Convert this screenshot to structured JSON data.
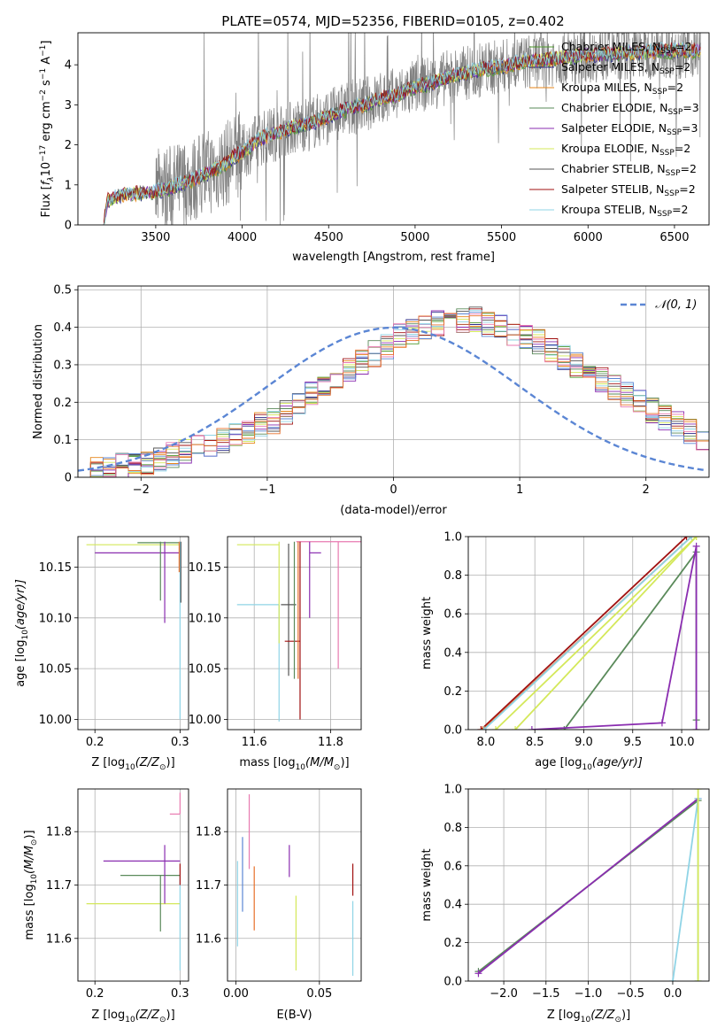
{
  "figure": {
    "title": "PLATE=0574, MJD=52356, FIBERID=0105, z=0.402",
    "colors": {
      "chabrier_miles": "#4f9a2e",
      "salpeter_miles": "#2d2d8a",
      "kroupa_miles": "#e6861a",
      "chabrier_elodie": "#5a8a5a",
      "salpeter_elodie": "#8a2db0",
      "kroupa_elodie": "#d4e85a",
      "chabrier_stelib": "#555555",
      "salpeter_stelib": "#a01010",
      "kroupa_stelib": "#8fd4e6",
      "normal": "#5b86d4",
      "pink": "#e87ab0",
      "orange": "#e8702a",
      "data": "#808080"
    }
  },
  "chart_data": [
    {
      "id": "spectrum",
      "type": "line",
      "xlabel": "wavelength [Angstrom, rest frame]",
      "ylabel_parts": [
        "Flux [",
        "f",
        "λ",
        "10",
        "−17",
        " erg cm",
        "−2",
        " s",
        "−1",
        " A",
        "−1",
        "]"
      ],
      "xlim": [
        3050,
        6700
      ],
      "ylim": [
        0,
        4.8
      ],
      "xticks": [
        3500,
        4000,
        4500,
        5000,
        5500,
        6000,
        6500
      ],
      "yticks": [
        0,
        1,
        2,
        3,
        4
      ],
      "grid": false,
      "legend_placement": "right",
      "legend": [
        {
          "name": "Chabrier MILES, N",
          "sub": "SSP",
          "tail": "=2",
          "color_key": "chabrier_miles"
        },
        {
          "name": "Salpeter MILES, N",
          "sub": "SSP",
          "tail": "=2",
          "color_key": "salpeter_miles"
        },
        {
          "name": "Kroupa MILES, N",
          "sub": "SSP",
          "tail": "=2",
          "color_key": "kroupa_miles"
        },
        {
          "name": "Chabrier ELODIE, N",
          "sub": "SSP",
          "tail": "=3",
          "color_key": "chabrier_elodie"
        },
        {
          "name": "Salpeter ELODIE, N",
          "sub": "SSP",
          "tail": "=3",
          "color_key": "salpeter_elodie"
        },
        {
          "name": "Kroupa ELODIE, N",
          "sub": "SSP",
          "tail": "=2",
          "color_key": "kroupa_elodie"
        },
        {
          "name": "Chabrier STELIB, N",
          "sub": "SSP",
          "tail": "=2",
          "color_key": "chabrier_stelib"
        },
        {
          "name": "Salpeter STELIB, N",
          "sub": "SSP",
          "tail": "=2",
          "color_key": "salpeter_stelib"
        },
        {
          "name": "Kroupa STELIB, N",
          "sub": "SSP",
          "tail": "=2",
          "color_key": "kroupa_stelib"
        }
      ],
      "model_x": [
        3200,
        3220,
        3300,
        3400,
        3500,
        3600,
        3700,
        3800,
        3900,
        3950,
        4000,
        4100,
        4200,
        4300,
        4400,
        4500,
        4600,
        4700,
        4800,
        4900,
        5000,
        5100,
        5200,
        5300,
        5400,
        5500,
        5600,
        5700,
        5800,
        5900,
        6000,
        6100,
        6200,
        6300,
        6400,
        6500,
        6600
      ],
      "model_y": [
        0.0,
        0.6,
        0.75,
        0.78,
        0.82,
        0.95,
        1.1,
        1.3,
        1.5,
        1.7,
        1.8,
        2.15,
        2.3,
        2.45,
        2.55,
        2.7,
        2.9,
        3.0,
        3.15,
        3.25,
        3.45,
        3.55,
        3.7,
        3.8,
        3.9,
        3.95,
        4.05,
        4.1,
        4.15,
        4.2,
        4.25,
        4.25,
        4.3,
        4.3,
        4.35,
        4.35,
        4.35
      ],
      "data_noise_start": 3500
    },
    {
      "id": "residuals",
      "type": "bar",
      "xlabel": "(data-model)/error",
      "ylabel": "Normed distribution",
      "xlim": [
        -2.5,
        2.5
      ],
      "ylim": [
        0,
        0.51
      ],
      "xticks": [
        -2,
        -1,
        0,
        1,
        2
      ],
      "xtick_labels": [
        "−2",
        "−1",
        "0",
        "1",
        "2"
      ],
      "yticks": [
        0.0,
        0.1,
        0.2,
        0.3,
        0.4,
        0.5
      ],
      "grid": true,
      "legend_placement": "top-right",
      "normal_label": "𝒩(0, 1)",
      "bin_width": 0.1,
      "bin_start": -2.5,
      "hist_base": [
        0.02,
        0.02,
        0.02,
        0.03,
        0.03,
        0.04,
        0.05,
        0.06,
        0.07,
        0.08,
        0.09,
        0.1,
        0.11,
        0.12,
        0.14,
        0.15,
        0.17,
        0.2,
        0.22,
        0.25,
        0.27,
        0.29,
        0.31,
        0.33,
        0.35,
        0.38,
        0.39,
        0.4,
        0.41,
        0.41,
        0.42,
        0.42,
        0.41,
        0.4,
        0.38,
        0.37,
        0.36,
        0.34,
        0.32,
        0.3,
        0.28,
        0.26,
        0.24,
        0.22,
        0.2,
        0.18,
        0.16,
        0.14,
        0.12,
        0.1
      ]
    },
    {
      "id": "age_vs_Z",
      "type": "scatter",
      "xlabel_parts": [
        "Z [log",
        "10",
        "(Z/Z",
        "⊙",
        ")]"
      ],
      "ylabel_parts": [
        "age  [log",
        "10",
        "(age/yr)]"
      ],
      "xlim": [
        0.18,
        0.31
      ],
      "ylim": [
        9.99,
        10.18
      ],
      "xticks": [
        0.2,
        0.3
      ],
      "xtick_labels": [
        "0.2",
        "0.3"
      ],
      "yticks": [
        10.0,
        10.05,
        10.1,
        10.15
      ],
      "ytick_labels": [
        "10.00",
        "10.05",
        "10.10",
        "10.15"
      ],
      "grid": true,
      "points": [
        {
          "x": 0.3,
          "y": 10.172,
          "xerr": [
            0.11,
            0.0
          ],
          "yerr": [
            0.0,
            0.0
          ],
          "color_key": "kroupa_elodie"
        },
        {
          "x": 0.3,
          "y": 10.174,
          "xerr": [
            0.05,
            0.0
          ],
          "yerr": [
            0.0,
            0.0
          ],
          "color_key": "chabrier_elodie"
        },
        {
          "x": 0.3,
          "y": 10.164,
          "xerr": [
            0.1,
            0.0
          ],
          "yerr": [
            0.0,
            0.0
          ],
          "color_key": "salpeter_elodie"
        },
        {
          "x": 0.282,
          "y": 10.175,
          "xerr": [
            0.0,
            0.0
          ],
          "yerr": [
            0.08,
            0.0
          ],
          "color_key": "salpeter_elodie"
        },
        {
          "x": 0.277,
          "y": 10.175,
          "xerr": [
            0.0,
            0.0
          ],
          "yerr": [
            0.058,
            0.0
          ],
          "color_key": "chabrier_elodie"
        },
        {
          "x": 0.3,
          "y": 10.175,
          "xerr": [
            0.0,
            0.0
          ],
          "yerr": [
            0.175,
            0.0
          ],
          "color_key": "kroupa_stelib"
        },
        {
          "x": 0.301,
          "y": 10.175,
          "xerr": [
            0.0,
            0.0
          ],
          "yerr": [
            0.06,
            0.0
          ],
          "color_key": "chabrier_stelib"
        },
        {
          "x": 0.299,
          "y": 10.175,
          "xerr": [
            0.0,
            0.0
          ],
          "yerr": [
            0.03,
            0.0
          ],
          "color_key": "orange"
        }
      ]
    },
    {
      "id": "age_vs_mass",
      "type": "scatter",
      "xlabel_parts": [
        "mass [log",
        "10",
        "(M/M",
        "⊙",
        ")]"
      ],
      "xlim": [
        11.53,
        11.88
      ],
      "ylim": [
        9.99,
        10.18
      ],
      "xticks": [
        11.6,
        11.8
      ],
      "xtick_labels": [
        "11.6",
        "11.8"
      ],
      "yticks": [
        10.0,
        10.05,
        10.1,
        10.15
      ],
      "ytick_labels": [
        "10.00",
        "10.05",
        "10.10",
        "10.15"
      ],
      "grid": true,
      "points": [
        {
          "x": 11.665,
          "y": 10.172,
          "xerr": [
            0.11,
            0.0
          ],
          "yerr": [
            0.0,
            0.0
          ],
          "color_key": "kroupa_elodie"
        },
        {
          "x": 11.745,
          "y": 10.164,
          "xerr": [
            0.0,
            0.03
          ],
          "yerr": [
            0.0,
            0.0
          ],
          "color_key": "salpeter_elodie"
        },
        {
          "x": 11.82,
          "y": 10.175,
          "xerr": [
            0.11,
            0.07
          ],
          "yerr": [
            0.125,
            0.0
          ],
          "color_key": "pink"
        },
        {
          "x": 11.665,
          "y": 10.113,
          "xerr": [
            0.11,
            0.0
          ],
          "yerr": [
            0.115,
            0.0
          ],
          "color_key": "kroupa_stelib"
        },
        {
          "x": 11.69,
          "y": 10.113,
          "xerr": [
            0.02,
            0.02
          ],
          "yerr": [
            0.07,
            0.06
          ],
          "color_key": "chabrier_stelib"
        },
        {
          "x": 11.72,
          "y": 10.077,
          "xerr": [
            0.04,
            0.0
          ],
          "yerr": [
            0.077,
            0.098
          ],
          "color_key": "salpeter_stelib"
        },
        {
          "x": 11.745,
          "y": 10.175,
          "xerr": [
            0.0,
            0.0
          ],
          "yerr": [
            0.075,
            0.0
          ],
          "color_key": "salpeter_elodie"
        },
        {
          "x": 11.715,
          "y": 10.175,
          "xerr": [
            0.0,
            0.0
          ],
          "yerr": [
            0.135,
            0.0
          ],
          "color_key": "orange"
        },
        {
          "x": 11.705,
          "y": 10.175,
          "xerr": [
            0.0,
            0.0
          ],
          "yerr": [
            0.135,
            0.0
          ],
          "color_key": "chabrier_elodie"
        },
        {
          "x": 11.665,
          "y": 10.175,
          "xerr": [
            0.0,
            0.0
          ],
          "yerr": [
            0.1,
            0.0
          ],
          "color_key": "kroupa_elodie"
        }
      ]
    },
    {
      "id": "massweight_vs_age",
      "type": "line",
      "xlabel_parts": [
        "age  [log",
        "10",
        "(age/yr)]"
      ],
      "ylabel": "mass weight",
      "xlim": [
        7.82,
        10.28
      ],
      "ylim": [
        0,
        1.0
      ],
      "xticks": [
        8.0,
        8.5,
        9.0,
        9.5,
        10.0
      ],
      "xtick_labels": [
        "8.0",
        "8.5",
        "9.0",
        "9.5",
        "10.0"
      ],
      "yticks": [
        0.0,
        0.2,
        0.4,
        0.6,
        0.8,
        1.0
      ],
      "ytick_labels": [
        "0.0",
        "0.2",
        "0.4",
        "0.6",
        "0.8",
        "1.0"
      ],
      "grid": true,
      "lines": [
        {
          "x": [
            7.95,
            10.05
          ],
          "y": [
            0.0,
            1.0
          ],
          "color_key": "salpeter_stelib"
        },
        {
          "x": 7.95,
          "y": 0.0,
          "color_key": "salpeter_stelib",
          "skip": true
        },
        {
          "x": [
            7.97,
            10.1
          ],
          "y": [
            0.0,
            1.0
          ],
          "color_key": "orange"
        },
        {
          "x": [
            7.98,
            10.1
          ],
          "y": [
            0.0,
            1.0
          ],
          "color_key": "kroupa_stelib"
        },
        {
          "x": [
            8.1,
            10.15
          ],
          "y": [
            0.0,
            1.0
          ],
          "color_key": "kroupa_elodie"
        },
        {
          "x": [
            8.3,
            10.15
          ],
          "y": [
            0.0,
            1.0
          ],
          "color_key": "kroupa_elodie"
        },
        {
          "x": [
            8.8,
            10.15,
            10.15
          ],
          "y": [
            0.0,
            0.92,
            0.05
          ],
          "color_key": "chabrier_elodie"
        },
        {
          "x": [
            8.47,
            9.8,
            10.15,
            10.15
          ],
          "y": [
            0.0,
            0.035,
            0.95,
            0.0
          ],
          "color_key": "salpeter_elodie"
        }
      ]
    },
    {
      "id": "mass_vs_Z",
      "type": "scatter",
      "xlabel_parts": [
        "Z [log",
        "10",
        "(Z/Z",
        "⊙",
        ")]"
      ],
      "ylabel_parts": [
        "mass [log",
        "10",
        "(M/M",
        "⊙",
        ")]"
      ],
      "xlim": [
        0.18,
        0.31
      ],
      "ylim": [
        11.52,
        11.88
      ],
      "xticks": [
        0.2,
        0.3
      ],
      "xtick_labels": [
        "0.2",
        "0.3"
      ],
      "yticks": [
        11.6,
        11.7,
        11.8
      ],
      "ytick_labels": [
        "11.6",
        "11.7",
        "11.8"
      ],
      "grid": true,
      "points": [
        {
          "x": 0.3,
          "y": 11.665,
          "xerr": [
            0.11,
            0.0
          ],
          "yerr": [
            0.0,
            0.0
          ],
          "color_key": "kroupa_elodie"
        },
        {
          "x": 0.3,
          "y": 11.745,
          "xerr": [
            0.09,
            0.0
          ],
          "yerr": [
            0.0,
            0.0
          ],
          "color_key": "salpeter_elodie"
        },
        {
          "x": 0.3,
          "y": 11.718,
          "xerr": [
            0.07,
            0.0
          ],
          "yerr": [
            0.0,
            0.0
          ],
          "color_key": "chabrier_elodie"
        },
        {
          "x": 0.3,
          "y": 11.833,
          "xerr": [
            0.012,
            0.0
          ],
          "yerr": [
            0.0,
            0.04
          ],
          "color_key": "pink"
        },
        {
          "x": 0.282,
          "y": 11.745,
          "xerr": [
            0.0,
            0.0
          ],
          "yerr": [
            0.08,
            0.03
          ],
          "color_key": "salpeter_elodie"
        },
        {
          "x": 0.277,
          "y": 11.718,
          "xerr": [
            0.0,
            0.0
          ],
          "yerr": [
            0.105,
            0.0
          ],
          "color_key": "chabrier_elodie"
        },
        {
          "x": 0.3,
          "y": 11.72,
          "xerr": [
            0.0,
            0.0
          ],
          "yerr": [
            0.18,
            0.0
          ],
          "color_key": "kroupa_stelib"
        },
        {
          "x": 0.3,
          "y": 11.74,
          "xerr": [
            0.0,
            0.0
          ],
          "yerr": [
            0.04,
            0.0
          ],
          "color_key": "salpeter_stelib"
        }
      ]
    },
    {
      "id": "mass_vs_EBV",
      "type": "scatter",
      "xlabel": "E(B-V)",
      "xlim": [
        -0.005,
        0.075
      ],
      "ylim": [
        11.52,
        11.88
      ],
      "xticks": [
        0.0,
        0.05
      ],
      "xtick_labels": [
        "0.00",
        "0.05"
      ],
      "yticks": [
        11.6,
        11.7,
        11.8
      ],
      "ytick_labels": [
        "11.6",
        "11.7",
        "11.8"
      ],
      "grid": true,
      "points": [
        {
          "x": 0.008,
          "y": 11.8,
          "yerr": [
            0.07,
            0.07
          ],
          "color_key": "pink"
        },
        {
          "x": 0.004,
          "y": 11.72,
          "yerr": [
            0.07,
            0.07
          ],
          "color_key": "normal"
        },
        {
          "x": 0.011,
          "y": 11.675,
          "yerr": [
            0.06,
            0.06
          ],
          "color_key": "orange"
        },
        {
          "x": 0.032,
          "y": 11.745,
          "yerr": [
            0.03,
            0.03
          ],
          "color_key": "salpeter_elodie"
        },
        {
          "x": 0.036,
          "y": 11.61,
          "yerr": [
            0.07,
            0.07
          ],
          "color_key": "kroupa_elodie"
        },
        {
          "x": 0.001,
          "y": 11.665,
          "yerr": [
            0.08,
            0.08
          ],
          "color_key": "kroupa_stelib"
        },
        {
          "x": 0.07,
          "y": 11.71,
          "yerr": [
            0.03,
            0.03
          ],
          "color_key": "salpeter_stelib"
        },
        {
          "x": 0.07,
          "y": 11.6,
          "yerr": [
            0.07,
            0.07
          ],
          "color_key": "kroupa_stelib"
        }
      ]
    },
    {
      "id": "massweight_vs_Z",
      "type": "line",
      "xlabel_parts": [
        "Z [log",
        "10",
        "(Z/Z",
        "⊙",
        ")]"
      ],
      "ylabel": "mass weight",
      "xlim": [
        -2.42,
        0.43
      ],
      "ylim": [
        0,
        1.0
      ],
      "xticks": [
        -2.0,
        -1.5,
        -1.0,
        -0.5,
        0.0
      ],
      "xtick_labels": [
        "−2.0",
        "−1.5",
        "−1.0",
        "−0.5",
        "0.0"
      ],
      "yticks": [
        0.0,
        0.2,
        0.4,
        0.6,
        0.8,
        1.0
      ],
      "ytick_labels": [
        "0.0",
        "0.2",
        "0.4",
        "0.6",
        "0.8",
        "1.0"
      ],
      "grid": true,
      "lines": [
        {
          "x": [
            -2.3,
            0.3
          ],
          "y": [
            0.05,
            0.94
          ],
          "color_key": "chabrier_elodie"
        },
        {
          "x": [
            -2.3,
            0.3
          ],
          "y": [
            0.04,
            0.95
          ],
          "color_key": "salpeter_elodie"
        },
        {
          "x": [
            0.0,
            0.3,
            0.3
          ],
          "y": [
            0.0,
            0.95,
            0.0
          ],
          "color_key": "kroupa_stelib"
        },
        {
          "x": [
            0.3,
            0.3
          ],
          "y": [
            0.0,
            1.0
          ],
          "color_key": "kroupa_elodie"
        }
      ]
    }
  ]
}
